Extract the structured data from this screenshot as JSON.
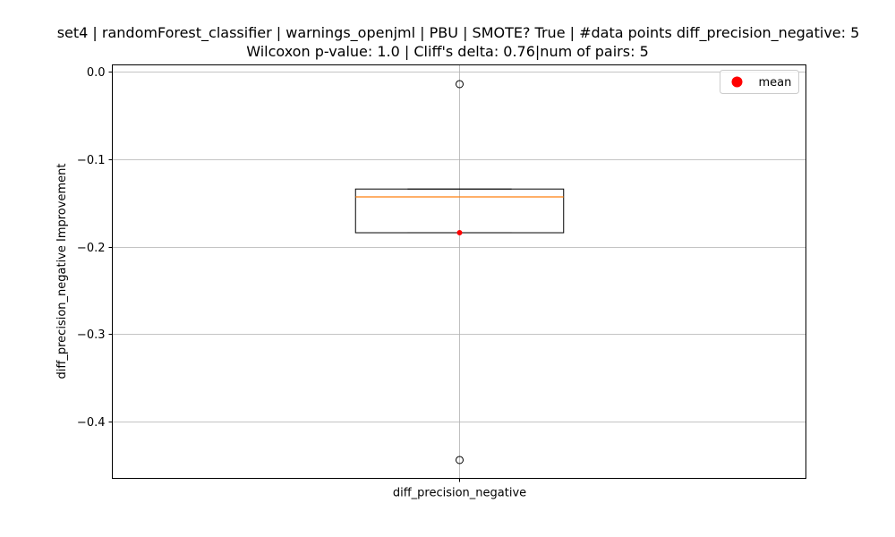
{
  "chart_data": {
    "type": "box",
    "title": "set4 | randomForest_classifier | warnings_openjml | PBU | SMOTE? True | #data points diff_precision_negative: 5",
    "subtitle": "Wilcoxon p-value: 1.0 | Cliff's delta: 0.76|num of pairs: 5",
    "xlabel": "",
    "ylabel": "diff_precision_negative Improvement",
    "categories": [
      "diff_precision_negative"
    ],
    "ylim": [
      -0.465,
      0.008
    ],
    "yticks": [
      0.0,
      -0.1,
      -0.2,
      -0.3,
      -0.4
    ],
    "ytick_labels": [
      "0.0",
      "−0.1",
      "−0.2",
      "−0.3",
      "−0.4"
    ],
    "grid": true,
    "legend": {
      "position": "top-right",
      "entries": [
        {
          "label": "mean",
          "color": "#ff0000",
          "marker": "circle"
        }
      ]
    },
    "boxes": [
      {
        "category": "diff_precision_negative",
        "q1": -0.184,
        "median": -0.143,
        "q3": -0.134,
        "whisker_low": -0.184,
        "whisker_high": -0.134,
        "mean": -0.184,
        "outliers": [
          -0.014,
          -0.444
        ]
      }
    ],
    "colors": {
      "box": "#000000",
      "median": "#ff7f0e",
      "mean": "#ff0000",
      "grid": "#b0b0b0"
    }
  }
}
